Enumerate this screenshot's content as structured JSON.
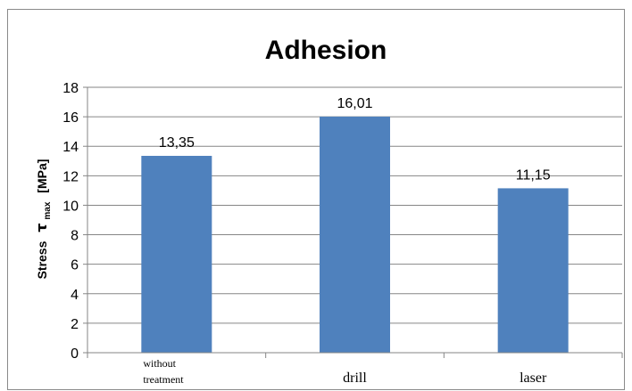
{
  "chart_data": {
    "type": "bar",
    "title": "Adhesion",
    "ylabel": {
      "prefix": "Stress",
      "symbol": "τ",
      "subscript": "max",
      "unit": "[MPa]"
    },
    "xlabel": "",
    "categories": [
      [
        "without",
        "treatment"
      ],
      [
        "drill"
      ],
      [
        "laser"
      ]
    ],
    "values": [
      13.35,
      16.01,
      11.15
    ],
    "data_labels": [
      "13,35",
      "16,01",
      "11,15"
    ],
    "ylim": [
      0,
      18
    ],
    "yticks": [
      0,
      2,
      4,
      6,
      8,
      10,
      12,
      14,
      16,
      18
    ],
    "grid": true,
    "legend": "none",
    "bar_color": "#4f81bd",
    "grid_color": "#868686"
  }
}
